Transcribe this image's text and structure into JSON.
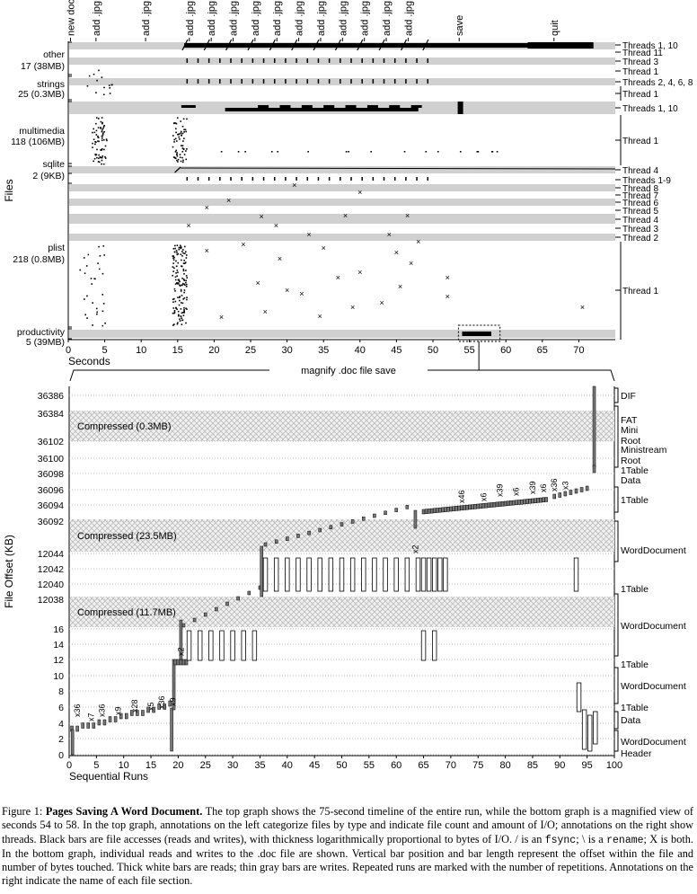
{
  "chart_data": [
    {
      "type": "scatter",
      "xlabel": "Seconds",
      "ylabel": "Files",
      "xlim": [
        0,
        75
      ],
      "x_ticks": [
        0,
        5,
        10,
        15,
        20,
        25,
        30,
        35,
        40,
        45,
        50,
        55,
        60,
        65,
        70
      ],
      "top_annotations": [
        {
          "label": "new doc",
          "t": 0.3
        },
        {
          "label": "add .jpg",
          "t": 3.8
        },
        {
          "label": "add .jpg",
          "t": 10.6
        },
        {
          "label": "add .jpg",
          "t": 16.6
        },
        {
          "label": "add .jpg",
          "t": 19.6
        },
        {
          "label": "add .jpg",
          "t": 22.6
        },
        {
          "label": "add .jpg",
          "t": 25.6
        },
        {
          "label": "add .jpg",
          "t": 28.6
        },
        {
          "label": "add .jpg",
          "t": 31.6
        },
        {
          "label": "add .jpg",
          "t": 34.6
        },
        {
          "label": "add .jpg",
          "t": 37.6
        },
        {
          "label": "add .jpg",
          "t": 40.6
        },
        {
          "label": "add .jpg",
          "t": 43.6
        },
        {
          "label": "add .jpg",
          "t": 46.6
        },
        {
          "label": "save",
          "t": 53.6
        },
        {
          "label": "quit",
          "t": 66.6
        }
      ],
      "file_groups": [
        {
          "name": "other",
          "detail": "17 (38MB)"
        },
        {
          "name": "strings",
          "detail": "25 (0.3MB)"
        },
        {
          "name": "multimedia",
          "detail": "118 (106MB)"
        },
        {
          "name": "sqlite",
          "detail": "2 (9KB)"
        },
        {
          "name": "plist",
          "detail": "218 (0.8MB)"
        },
        {
          "name": "productivity",
          "detail": "5 (39MB)"
        }
      ],
      "thread_labels": [
        "Threads 1, 10",
        "Thread 11",
        "Thread 3",
        "Thread 1",
        "Threads 2, 4, 6, 8",
        "Thread 1",
        "Threads 1, 10",
        "Thread 1",
        "Thread 4",
        "Threads 1-9",
        "Thread 8",
        "Thread 7",
        "Thread 6",
        "Thread 5",
        "Thread 4",
        "Thread 3",
        "Thread 2",
        "Thread 1"
      ],
      "magnify_label": "magnify .doc file save"
    },
    {
      "type": "bar",
      "xlabel": "Sequential Runs",
      "ylabel": "File Offset (KB)",
      "xlim": [
        0,
        100
      ],
      "x_ticks": [
        0,
        5,
        10,
        15,
        20,
        25,
        30,
        35,
        40,
        45,
        50,
        55,
        60,
        65,
        70,
        75,
        80,
        85,
        90,
        95,
        100
      ],
      "y_tick_bands": [
        [
          "36386",
          "36384"
        ],
        [
          "36102",
          "36100",
          "36098",
          "36096",
          "36094",
          "36092"
        ],
        [
          "12044",
          "12042",
          "12040",
          "12038"
        ],
        [
          "16",
          "14",
          "12",
          "10",
          "8",
          "6",
          "4",
          "2",
          "0"
        ]
      ],
      "compressed_regions": [
        "Compressed (0.3MB)",
        "Compressed (23.5MB)",
        "Compressed (11.7MB)"
      ],
      "repeat_labels": [
        "x36",
        "x7",
        "x36",
        "x9",
        "x28",
        "x5",
        "x36",
        "x9",
        "x2",
        "x2",
        "x46",
        "x6",
        "x39",
        "x6",
        "x39",
        "x6",
        "x36",
        "x3"
      ],
      "sections": [
        "DIF",
        "FAT",
        "Mini",
        "Root",
        "Ministream",
        "Root",
        "1Table",
        "Data",
        "1Table",
        "WordDocument",
        "1Table",
        "WordDocument",
        "1Table",
        "WordDocument",
        "1Table",
        "Data",
        "WordDocument",
        "Header"
      ]
    }
  ],
  "caption": {
    "fig": "Figure 1:",
    "title": "Pages Saving A Word Document.",
    "t1": "The top graph shows the 75-second timeline of the entire run, while the bottom graph is a magnified view of seconds 54 to 58. In the top graph, annotations on the left categorize files by type and indicate file count and amount of I/O; annotations on the right show threads. Black bars are file accesses (reads and writes), with thickness logarithmically proportional to bytes of I/O. / is an",
    "fsync": "fsync",
    "t2": "; \\ is a",
    "rename": "rename",
    "t3": "; X is both. In the bottom graph, individual reads and writes to the .doc file are shown. Vertical bar position and bar length represent the offset within the file and number of bytes touched. Thick white bars are reads; thin gray bars are writes. Repeated runs are marked with the number of repetitions. Annotations on the right indicate the name of each file section."
  }
}
